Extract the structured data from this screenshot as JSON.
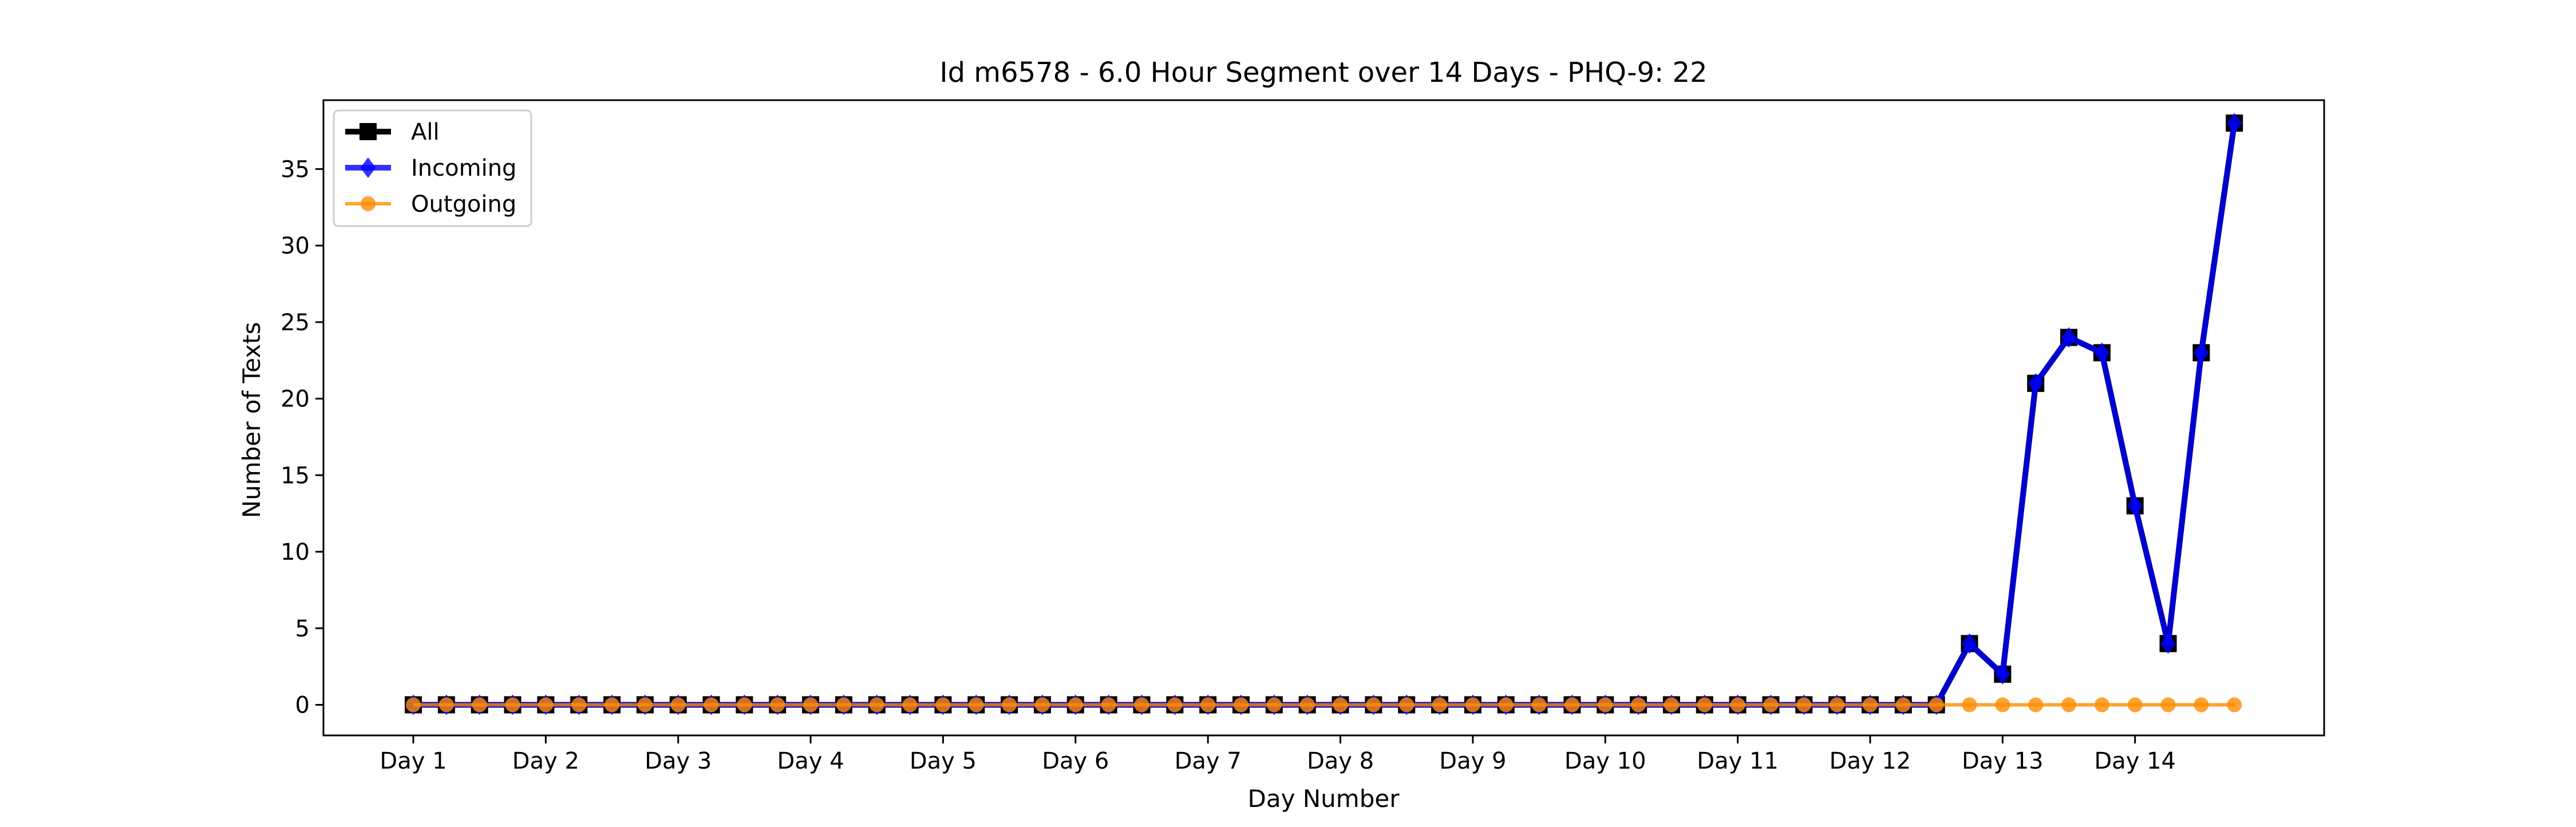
{
  "chart_data": {
    "type": "line",
    "title": "Id m6578 - 6.0 Hour Segment over 14 Days - PHQ-9: 22",
    "xlabel": "Day Number",
    "ylabel": "Number of Texts",
    "x_tick_labels": [
      "Day 1",
      "Day 2",
      "Day 3",
      "Day 4",
      "Day 5",
      "Day 6",
      "Day 7",
      "Day 8",
      "Day 9",
      "Day 10",
      "Day 11",
      "Day 12",
      "Day 13",
      "Day 14"
    ],
    "y_ticks": [
      0,
      5,
      10,
      15,
      20,
      25,
      30,
      35
    ],
    "ylim": [
      -2,
      39.5
    ],
    "grid": false,
    "legend_position": "top-left",
    "x": [
      0,
      1,
      2,
      3,
      4,
      5,
      6,
      7,
      8,
      9,
      10,
      11,
      12,
      13,
      14,
      15,
      16,
      17,
      18,
      19,
      20,
      21,
      22,
      23,
      24,
      25,
      26,
      27,
      28,
      29,
      30,
      31,
      32,
      33,
      34,
      35,
      36,
      37,
      38,
      39,
      40,
      41,
      42,
      43,
      44,
      45,
      46,
      47,
      48,
      49,
      50,
      51,
      52,
      53,
      54,
      55
    ],
    "series": [
      {
        "name": "All",
        "color": "#000000",
        "marker": "square",
        "values": [
          0,
          0,
          0,
          0,
          0,
          0,
          0,
          0,
          0,
          0,
          0,
          0,
          0,
          0,
          0,
          0,
          0,
          0,
          0,
          0,
          0,
          0,
          0,
          0,
          0,
          0,
          0,
          0,
          0,
          0,
          0,
          0,
          0,
          0,
          0,
          0,
          0,
          0,
          0,
          0,
          0,
          0,
          0,
          0,
          0,
          0,
          0,
          4,
          2,
          21,
          24,
          23,
          13,
          4,
          23,
          38
        ]
      },
      {
        "name": "Incoming",
        "color": "#0000ff",
        "marker": "diamond",
        "values": [
          0,
          0,
          0,
          0,
          0,
          0,
          0,
          0,
          0,
          0,
          0,
          0,
          0,
          0,
          0,
          0,
          0,
          0,
          0,
          0,
          0,
          0,
          0,
          0,
          0,
          0,
          0,
          0,
          0,
          0,
          0,
          0,
          0,
          0,
          0,
          0,
          0,
          0,
          0,
          0,
          0,
          0,
          0,
          0,
          0,
          0,
          0,
          4,
          2,
          21,
          24,
          23,
          13,
          4,
          23,
          38
        ]
      },
      {
        "name": "Outgoing",
        "color": "#ff8c00",
        "marker": "circle",
        "values": [
          0,
          0,
          0,
          0,
          0,
          0,
          0,
          0,
          0,
          0,
          0,
          0,
          0,
          0,
          0,
          0,
          0,
          0,
          0,
          0,
          0,
          0,
          0,
          0,
          0,
          0,
          0,
          0,
          0,
          0,
          0,
          0,
          0,
          0,
          0,
          0,
          0,
          0,
          0,
          0,
          0,
          0,
          0,
          0,
          0,
          0,
          0,
          0,
          0,
          0,
          0,
          0,
          0,
          0,
          0,
          0
        ]
      }
    ]
  }
}
